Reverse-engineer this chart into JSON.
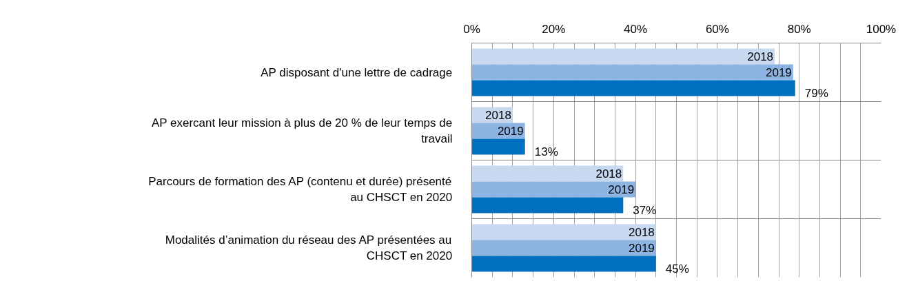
{
  "chart_data": {
    "type": "bar",
    "orientation": "horizontal",
    "categories": [
      "AP disposant d'une lettre de cadrage",
      "AP exercant leur mission à plus de 20 % de leur temps de travail",
      "Parcours de formation des AP (contenu et durée) présenté au CHSCT en 2020",
      "Modalités d’animation du réseau des AP présentées au CHSCT en 2020"
    ],
    "series": [
      {
        "name": "2018",
        "color": "#c6d9f1",
        "values": [
          74,
          10,
          37,
          45
        ]
      },
      {
        "name": "2019",
        "color": "#8eb4e3",
        "values": [
          78.5,
          13,
          40,
          45
        ]
      },
      {
        "color": "#0070c0",
        "values": [
          79,
          13,
          37,
          45
        ],
        "value_labels": [
          "79%",
          "13%",
          "37%",
          "45%"
        ]
      }
    ],
    "xlim": [
      0,
      100
    ],
    "xticks": [
      {
        "value": 0,
        "label": "0%"
      },
      {
        "value": 5,
        "label": null
      },
      {
        "value": 10,
        "label": null
      },
      {
        "value": 15,
        "label": null
      },
      {
        "value": 20,
        "label": "20%"
      },
      {
        "value": 25,
        "label": null
      },
      {
        "value": 30,
        "label": null
      },
      {
        "value": 35,
        "label": null
      },
      {
        "value": 40,
        "label": "40%"
      },
      {
        "value": 45,
        "label": null
      },
      {
        "value": 50,
        "label": null
      },
      {
        "value": 55,
        "label": null
      },
      {
        "value": 60,
        "label": "60%"
      },
      {
        "value": 65,
        "label": null
      },
      {
        "value": 70,
        "label": null
      },
      {
        "value": 75,
        "label": null
      },
      {
        "value": 80,
        "label": "80%"
      },
      {
        "value": 85,
        "label": null
      },
      {
        "value": 90,
        "label": null
      },
      {
        "value": 95,
        "label": null
      },
      {
        "value": 100,
        "label": "100%"
      }
    ],
    "grid": true
  }
}
